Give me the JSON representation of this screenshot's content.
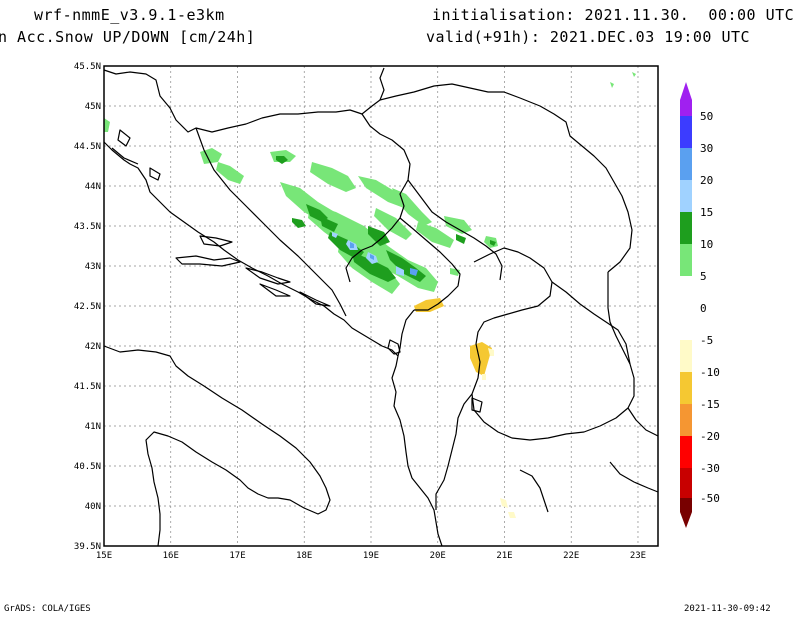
{
  "header": {
    "model": "wrf-nmmE_v3.9.1-e3km",
    "variable": "n Acc.Snow UP/DOWN [cm/24h]",
    "init": "initialisation: 2021.11.30.  00:00 UTC",
    "valid": "valid(+91h): 2021.DEC.03 19:00 UTC"
  },
  "footer": {
    "credit": "GrADS: COLA/IGES",
    "timestamp": "2021-11-30-09:42"
  },
  "map": {
    "lon_range": [
      15,
      23.3
    ],
    "lat_range": [
      39.5,
      45.5
    ],
    "x_ticks": [
      "15E",
      "16E",
      "17E",
      "18E",
      "19E",
      "20E",
      "21E",
      "22E",
      "23E"
    ],
    "y_ticks": [
      "39.5N",
      "40N",
      "40.5N",
      "41N",
      "41.5N",
      "42N",
      "42.5N",
      "43N",
      "43.5N",
      "44N",
      "44.5N",
      "45N",
      "45.5N"
    ]
  },
  "colorbar": {
    "labels": [
      "50",
      "30",
      "20",
      "15",
      "10",
      "5",
      "0",
      "-5",
      "-10",
      "-15",
      "-20",
      "-30",
      "-50"
    ],
    "colors": {
      "top_arrow": "#a020f0",
      "30_50": "#3c3cff",
      "20_30": "#5aa0f0",
      "15_20": "#a0d2ff",
      "10_15": "#1e9e1e",
      "5_10": "#78e678",
      "0_5": "#ffffff",
      "m5_0": "#ffffff",
      "m10_m5": "#fffac8",
      "m15_m10": "#f5c832",
      "m20_m15": "#f59632",
      "m30_m20": "#ff0000",
      "m50_m30": "#c80000",
      "bottom_arrow": "#780000"
    }
  }
}
